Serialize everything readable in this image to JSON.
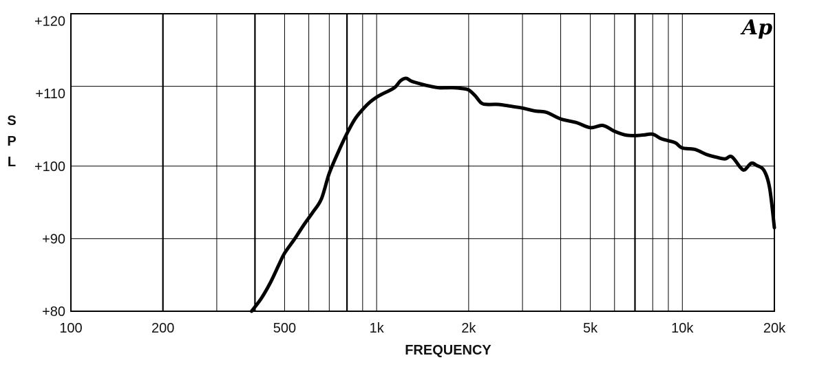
{
  "chart_data": {
    "type": "line",
    "xlabel": "FREQUENCY",
    "ylabel": "SPL",
    "logo": "Ap",
    "xscale": "log",
    "xlim": [
      100,
      20000
    ],
    "ylim": [
      80,
      121
    ],
    "grid": true,
    "x_ticks": [
      {
        "value": 100,
        "label": "100"
      },
      {
        "value": 200,
        "label": "200"
      },
      {
        "value": 500,
        "label": "500"
      },
      {
        "value": 1000,
        "label": "1k"
      },
      {
        "value": 2000,
        "label": "2k"
      },
      {
        "value": 5000,
        "label": "5k"
      },
      {
        "value": 10000,
        "label": "10k"
      },
      {
        "value": 20000,
        "label": "20k"
      }
    ],
    "y_ticks": [
      {
        "value": 80,
        "label": "+80"
      },
      {
        "value": 90,
        "label": "+90"
      },
      {
        "value": 100,
        "label": "+100"
      },
      {
        "value": 110,
        "label": "+110"
      },
      {
        "value": 120,
        "label": "+120"
      }
    ],
    "x_gridlines": [
      200,
      300,
      400,
      500,
      600,
      700,
      800,
      900,
      1000,
      2000,
      3000,
      4000,
      5000,
      6000,
      7000,
      8000,
      9000,
      10000
    ],
    "x_gridlines_bold": [
      200,
      400,
      800,
      7000
    ],
    "y_gridlines": [
      90,
      100,
      111
    ],
    "series": [
      {
        "color": "#000000",
        "points": [
          [
            390,
            80.0
          ],
          [
            420,
            81.8
          ],
          [
            450,
            84.0
          ],
          [
            480,
            86.5
          ],
          [
            500,
            88.0
          ],
          [
            540,
            90.0
          ],
          [
            580,
            92.0
          ],
          [
            620,
            93.7
          ],
          [
            660,
            95.5
          ],
          [
            700,
            99.0
          ],
          [
            750,
            102.0
          ],
          [
            800,
            104.5
          ],
          [
            850,
            106.5
          ],
          [
            900,
            107.8
          ],
          [
            950,
            108.8
          ],
          [
            1000,
            109.5
          ],
          [
            1050,
            110.0
          ],
          [
            1100,
            110.4
          ],
          [
            1150,
            110.9
          ],
          [
            1200,
            111.8
          ],
          [
            1250,
            112.1
          ],
          [
            1300,
            111.7
          ],
          [
            1400,
            111.3
          ],
          [
            1500,
            111.0
          ],
          [
            1600,
            110.8
          ],
          [
            1700,
            110.8
          ],
          [
            1800,
            110.8
          ],
          [
            1900,
            110.7
          ],
          [
            2000,
            110.5
          ],
          [
            2100,
            109.7
          ],
          [
            2200,
            108.7
          ],
          [
            2300,
            108.5
          ],
          [
            2500,
            108.5
          ],
          [
            2800,
            108.2
          ],
          [
            3000,
            108.0
          ],
          [
            3300,
            107.6
          ],
          [
            3600,
            107.4
          ],
          [
            4000,
            106.5
          ],
          [
            4500,
            106.0
          ],
          [
            5000,
            105.3
          ],
          [
            5500,
            105.6
          ],
          [
            6000,
            104.8
          ],
          [
            6500,
            104.3
          ],
          [
            7000,
            104.2
          ],
          [
            7500,
            104.3
          ],
          [
            8000,
            104.4
          ],
          [
            8500,
            103.8
          ],
          [
            9000,
            103.5
          ],
          [
            9500,
            103.2
          ],
          [
            10000,
            102.5
          ],
          [
            11000,
            102.3
          ],
          [
            12000,
            101.6
          ],
          [
            13000,
            101.2
          ],
          [
            13800,
            101.0
          ],
          [
            14500,
            101.3
          ],
          [
            15500,
            99.8
          ],
          [
            16000,
            99.5
          ],
          [
            16800,
            100.4
          ],
          [
            17500,
            100.1
          ],
          [
            18500,
            99.4
          ],
          [
            19300,
            97.0
          ],
          [
            20000,
            91.5
          ]
        ]
      }
    ]
  }
}
